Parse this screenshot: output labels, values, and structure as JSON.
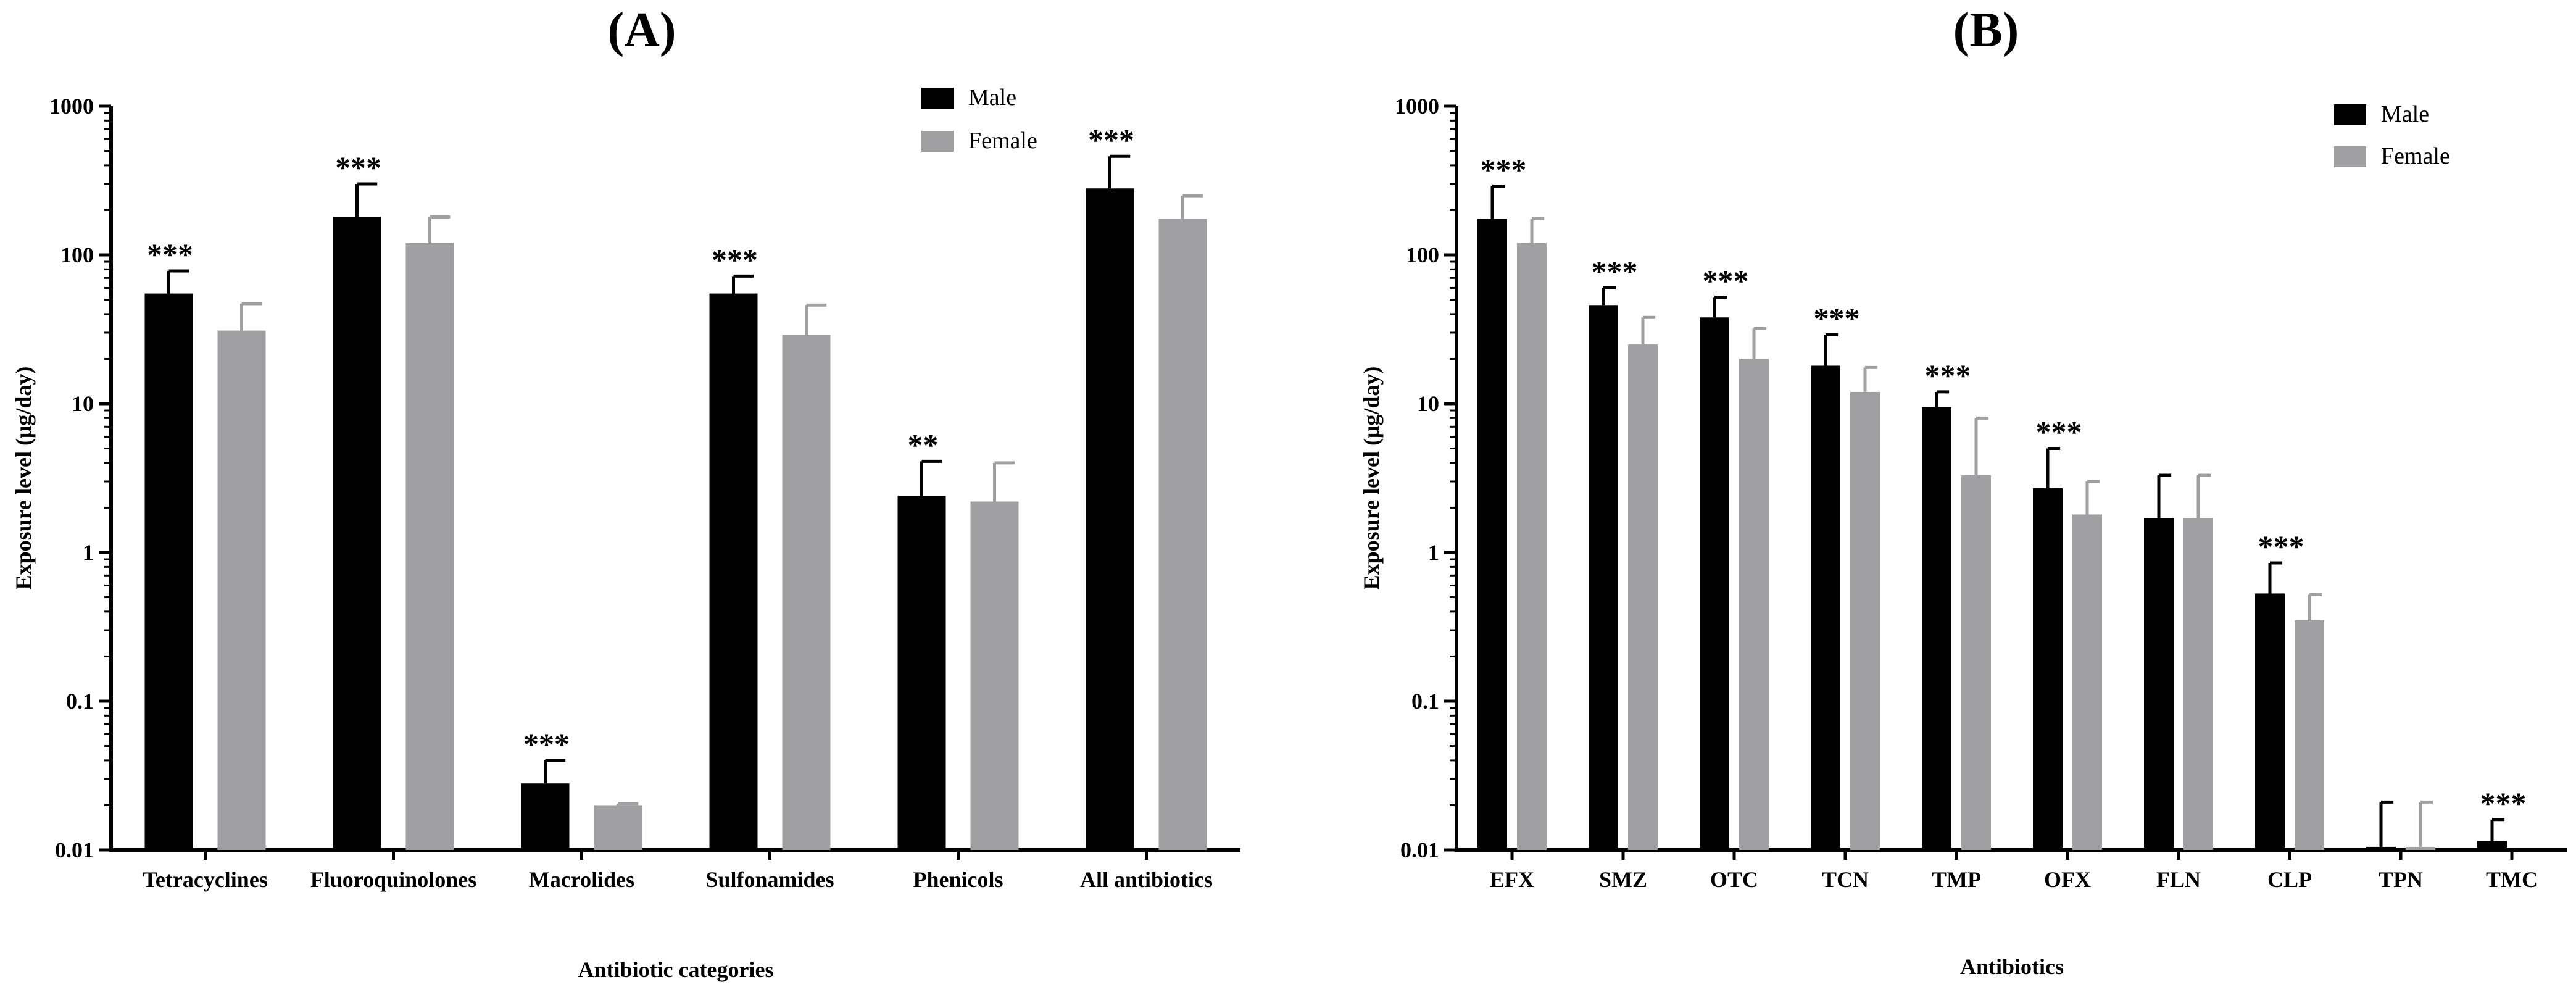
{
  "figure": {
    "colors": {
      "male": "#000000",
      "female": "#a0a0a3"
    }
  },
  "chart_data": [
    {
      "panel": "(A)",
      "type": "bar",
      "yscale": "log",
      "ylim": [
        0.01,
        1000
      ],
      "yticks": [
        "0.01",
        "0.1",
        "1",
        "10",
        "100",
        "1000"
      ],
      "xlabel": "Antibiotic categories",
      "ylabel": "Exposure level (μg/day)",
      "legend": {
        "position": "top-right",
        "entries": [
          "Male",
          "Female"
        ]
      },
      "categories": [
        "Tetracyclines",
        "Fluoroquinolones",
        "Macrolides",
        "Sulfonamides",
        "Phenicols",
        "All antibiotics"
      ],
      "series": [
        {
          "name": "Male",
          "values": [
            55,
            180,
            0.028,
            55,
            2.4,
            280
          ],
          "errors": [
            78,
            300,
            0.04,
            72,
            4.1,
            460
          ]
        },
        {
          "name": "Female",
          "values": [
            31,
            120,
            0.02,
            29,
            2.2,
            175
          ],
          "errors": [
            47,
            180,
            0.0205,
            46,
            4.0,
            250
          ]
        }
      ],
      "significance": [
        "***",
        "***",
        "***",
        "***",
        "**",
        "***"
      ]
    },
    {
      "panel": "(B)",
      "type": "bar",
      "yscale": "log",
      "ylim": [
        0.01,
        1000
      ],
      "yticks": [
        "0.01",
        "0.1",
        "1",
        "10",
        "100",
        "1000"
      ],
      "xlabel": "Antibiotics",
      "ylabel": "Exposure level (μg/day)",
      "legend": {
        "position": "top-right",
        "entries": [
          "Male",
          "Female"
        ]
      },
      "categories": [
        "EFX",
        "SMZ",
        "OTC",
        "TCN",
        "TMP",
        "OFX",
        "FLN",
        "CLP",
        "TPN",
        "TMC"
      ],
      "series": [
        {
          "name": "Male",
          "values": [
            175,
            46,
            38,
            18,
            9.5,
            2.7,
            1.7,
            0.53,
            0.0105,
            0.0115
          ],
          "errors": [
            290,
            60,
            52,
            29,
            12,
            5.0,
            3.3,
            0.85,
            0.021,
            0.016
          ]
        },
        {
          "name": "Female",
          "values": [
            120,
            25,
            20,
            12,
            3.3,
            1.8,
            1.7,
            0.35,
            0.0105,
            null
          ],
          "errors": [
            175,
            38,
            32,
            17.5,
            8.0,
            3.0,
            3.3,
            0.52,
            0.021,
            null
          ]
        }
      ],
      "significance": [
        "***",
        "***",
        "***",
        "***",
        "***",
        "***",
        "",
        "***",
        "",
        "***"
      ]
    }
  ]
}
